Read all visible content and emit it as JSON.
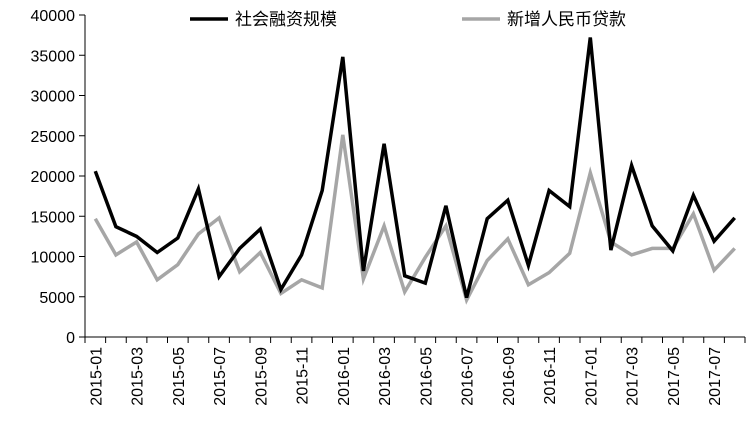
{
  "chart_data": {
    "type": "line",
    "title": "",
    "xlabel": "",
    "ylabel": "",
    "ylim": [
      0,
      40000
    ],
    "yticks": [
      0,
      5000,
      10000,
      15000,
      20000,
      25000,
      30000,
      35000,
      40000
    ],
    "grid": false,
    "legend_position": "top",
    "categories": [
      "2015-01",
      "2015-02",
      "2015-03",
      "2015-04",
      "2015-05",
      "2015-06",
      "2015-07",
      "2015-08",
      "2015-09",
      "2015-10",
      "2015-11",
      "2015-12",
      "2016-01",
      "2016-02",
      "2016-03",
      "2016-04",
      "2016-05",
      "2016-06",
      "2016-07",
      "2016-08",
      "2016-09",
      "2016-10",
      "2016-11",
      "2016-12",
      "2017-01",
      "2017-02",
      "2017-03",
      "2017-04",
      "2017-05",
      "2017-06",
      "2017-07",
      "2017-08"
    ],
    "xtick_labels": [
      "2015-01",
      "2015-03",
      "2015-05",
      "2015-07",
      "2015-09",
      "2015-11",
      "2016-01",
      "2016-03",
      "2016-05",
      "2016-07",
      "2016-09",
      "2016-11",
      "2017-01",
      "2017-03",
      "2017-05",
      "2017-07"
    ],
    "series": [
      {
        "name": "社会融资规模",
        "color": "#000000",
        "values": [
          20600,
          13700,
          12500,
          10500,
          12300,
          18400,
          7500,
          11000,
          13400,
          5900,
          10200,
          18200,
          34800,
          8200,
          24000,
          7600,
          6700,
          16300,
          4900,
          14700,
          17000,
          8900,
          18200,
          16200,
          37200,
          10800,
          21300,
          13800,
          10700,
          17600,
          11900,
          14800
        ]
      },
      {
        "name": "新增人民币贷款",
        "color": "#a6a6a6",
        "values": [
          14700,
          10200,
          11800,
          7100,
          9000,
          12800,
          14800,
          8100,
          10500,
          5400,
          7100,
          6100,
          25100,
          7200,
          13800,
          5600,
          9900,
          13800,
          4600,
          9500,
          12200,
          6500,
          8000,
          10400,
          20400,
          11800,
          10200,
          11000,
          11000,
          15300,
          8300,
          11000
        ]
      }
    ]
  }
}
